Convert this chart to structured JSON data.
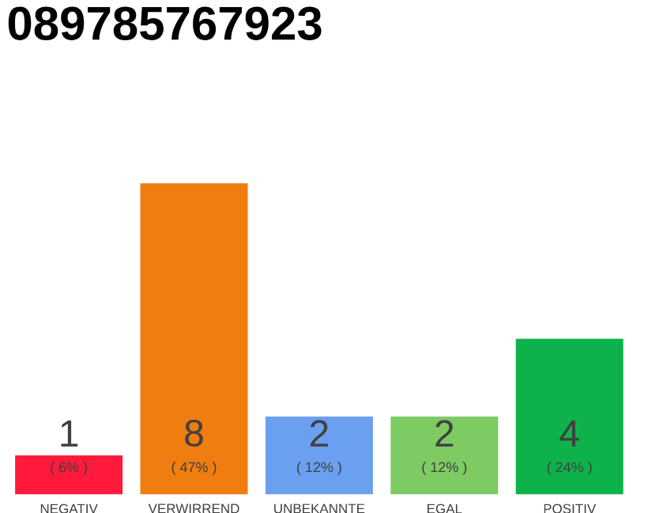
{
  "chart_data": {
    "type": "bar",
    "title": "089785767923",
    "categories": [
      "NEGATIV",
      "VERWIRREND",
      "UNBEKANNTE",
      "EGAL",
      "POSITIV"
    ],
    "values": [
      1,
      8,
      2,
      2,
      4
    ],
    "colors": [
      "#ff1a3c",
      "#f07d0f",
      "#6b9ff0",
      "#7ecb63",
      "#0db34a"
    ],
    "data_labels": true,
    "annotations": [
      "( 6% )",
      "( 47% )",
      "( 12% )",
      "( 12% )",
      "( 24% )"
    ]
  }
}
